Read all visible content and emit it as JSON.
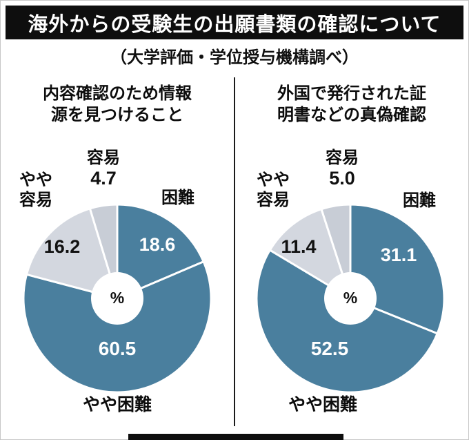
{
  "header": {
    "title": "海外からの受験生の出願書類の確認について",
    "subtitle": "（大学評価・学位授与機構調べ）"
  },
  "colors": {
    "title_bar_bg": "#0e0e0e",
    "title_bar_text": "#ffffff",
    "slice_colors": {
      "difficult": "#4a7f9e",
      "somewhat_easy": "#d3d7df",
      "easy": "#c8cdd6"
    },
    "value_text_on_blue": "#ffffff",
    "value_text_on_gray": "#111111"
  },
  "chart_data": [
    {
      "type": "pie",
      "title": "内容確認のため情報源を見つけること",
      "title_line1": "内容確認のため情報",
      "title_line2": "源を見つけること",
      "center_label": "%",
      "unit": "%",
      "start_angle_deg": 0,
      "direction": "clockwise",
      "slices": [
        {
          "label": "困難",
          "value": 18.6,
          "value_text": "18.6",
          "color_key": "difficult"
        },
        {
          "label": "やや困難",
          "value": 60.5,
          "value_text": "60.5",
          "color_key": "difficult"
        },
        {
          "label": "やや容易",
          "label_line1": "やや",
          "label_line2": "容易",
          "value": 16.2,
          "value_text": "16.2",
          "color_key": "somewhat_easy"
        },
        {
          "label": "容易",
          "value": 4.7,
          "value_text": "4.7",
          "color_key": "easy"
        }
      ]
    },
    {
      "type": "pie",
      "title": "外国で発行された証明書などの真偽確認",
      "title_line1": "外国で発行された証",
      "title_line2": "明書などの真偽確認",
      "center_label": "%",
      "unit": "%",
      "start_angle_deg": 0,
      "direction": "clockwise",
      "slices": [
        {
          "label": "困難",
          "value": 31.1,
          "value_text": "31.1",
          "color_key": "difficult"
        },
        {
          "label": "やや困難",
          "value": 52.5,
          "value_text": "52.5",
          "color_key": "difficult"
        },
        {
          "label": "やや容易",
          "label_line1": "やや",
          "label_line2": "容易",
          "value": 11.4,
          "value_text": "11.4",
          "color_key": "somewhat_easy"
        },
        {
          "label": "容易",
          "value": 5.0,
          "value_text": "5.0",
          "color_key": "easy"
        }
      ]
    }
  ]
}
